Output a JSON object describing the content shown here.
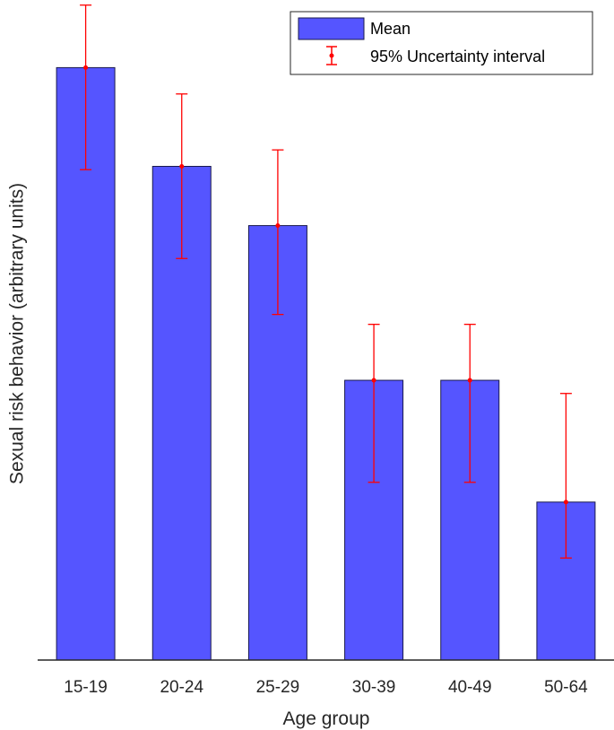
{
  "chart_data": {
    "type": "bar",
    "categories": [
      "15-19",
      "20-24",
      "25-29",
      "30-39",
      "40-49",
      "50-64"
    ],
    "series": [
      {
        "name": "Mean",
        "values": [
          0.9,
          0.75,
          0.66,
          0.425,
          0.425,
          0.24
        ],
        "lower": [
          0.745,
          0.61,
          0.525,
          0.27,
          0.27,
          0.155
        ],
        "upper": [
          0.995,
          0.86,
          0.775,
          0.51,
          0.51,
          0.405
        ]
      }
    ],
    "error_series_name": "95% Uncertainty interval",
    "xlabel": "Age group",
    "ylabel": "Sexual risk behavior (arbitrary units)",
    "ylim": [
      0,
      1
    ],
    "y_ticks_shown": false,
    "grid": false,
    "legend_position": "top-right",
    "colors": {
      "bar_fill": "#5555ff",
      "bar_edge": "#1a1a4d",
      "error_bar": "#ff0000",
      "axis": "#262626"
    }
  }
}
